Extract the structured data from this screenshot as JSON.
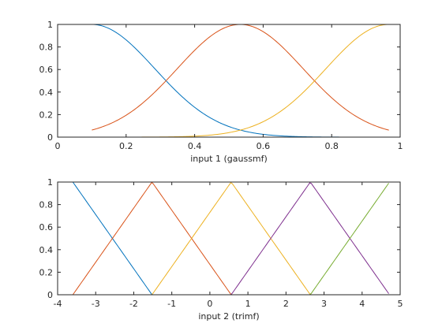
{
  "chart_data": [
    {
      "type": "line",
      "xlabel": "input 1 (gaussmf)",
      "xlim": [
        0,
        1
      ],
      "ylim": [
        0,
        1
      ],
      "xticks": [
        0,
        0.2,
        0.4,
        0.6,
        0.8,
        1
      ],
      "xtick_labels": [
        "0",
        "0.2",
        "0.4",
        "0.6",
        "0.8",
        "1"
      ],
      "yticks": [
        0,
        0.2,
        0.4,
        0.6,
        0.8,
        1
      ],
      "ytick_labels": [
        "0",
        "0.2",
        "0.4",
        "0.6",
        "0.8",
        "1"
      ],
      "x_data_range": [
        0.1,
        0.967
      ],
      "series": [
        {
          "color": "#0072BD",
          "mf": "gaussmf",
          "sigma": 0.184,
          "center": 0.1
        },
        {
          "color": "#D95319",
          "mf": "gaussmf",
          "sigma": 0.184,
          "center": 0.533
        },
        {
          "color": "#EDB120",
          "mf": "gaussmf",
          "sigma": 0.184,
          "center": 0.967
        }
      ]
    },
    {
      "type": "line",
      "xlabel": "input 2 (trimf)",
      "xlim": [
        -4,
        5
      ],
      "ylim": [
        0,
        1
      ],
      "xticks": [
        -4,
        -3,
        -2,
        -1,
        0,
        1,
        2,
        3,
        4,
        5
      ],
      "xtick_labels": [
        "-4",
        "-3",
        "-2",
        "-1",
        "0",
        "1",
        "2",
        "3",
        "4",
        "5"
      ],
      "yticks": [
        0,
        0.2,
        0.4,
        0.6,
        0.8,
        1
      ],
      "ytick_labels": [
        "0",
        "0.2",
        "0.4",
        "0.6",
        "0.8",
        "1"
      ],
      "x_data_range": [
        -3.6,
        4.7
      ],
      "series": [
        {
          "color": "#0072BD",
          "mf": "trimf",
          "params": [
            -5.68,
            -3.6,
            -1.52
          ]
        },
        {
          "color": "#D95319",
          "mf": "trimf",
          "params": [
            -3.6,
            -1.52,
            0.56
          ]
        },
        {
          "color": "#EDB120",
          "mf": "trimf",
          "params": [
            -1.52,
            0.56,
            2.64
          ]
        },
        {
          "color": "#7E2F8E",
          "mf": "trimf",
          "params": [
            0.56,
            2.64,
            4.72
          ]
        },
        {
          "color": "#77AC30",
          "mf": "trimf",
          "params": [
            2.64,
            4.72,
            6.8
          ]
        }
      ]
    }
  ]
}
